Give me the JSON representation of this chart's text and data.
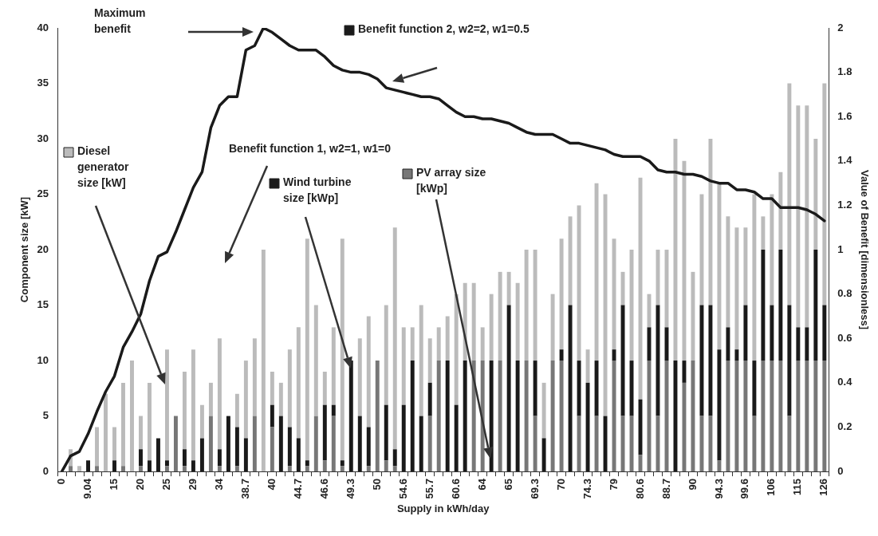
{
  "chart_data": {
    "type": "bar",
    "stacked": true,
    "marker": "none",
    "xlabel": "Supply in kWh/day",
    "ylabel": "Component size [kW]",
    "y2label": "Value of Benefit [dimensionless]",
    "categories": [
      "0",
      null,
      null,
      "9.04",
      null,
      null,
      "15",
      null,
      null,
      "20",
      null,
      null,
      "25",
      null,
      null,
      "29",
      null,
      null,
      "34",
      null,
      null,
      "38.7",
      null,
      null,
      "40",
      null,
      null,
      "44.7",
      null,
      null,
      "46.6",
      null,
      null,
      "49.3",
      null,
      null,
      "50",
      null,
      null,
      "54.6",
      null,
      null,
      "55.7",
      null,
      null,
      "60.6",
      null,
      null,
      "64",
      null,
      null,
      "65",
      null,
      null,
      "69.3",
      null,
      null,
      "70",
      null,
      null,
      "74.3",
      null,
      null,
      "79",
      null,
      null,
      "80.6",
      null,
      null,
      "88.7",
      null,
      null,
      "90",
      null,
      null,
      "94.3",
      null,
      null,
      "99.6",
      null,
      null,
      "106",
      null,
      null,
      "115",
      null,
      null,
      "126"
    ],
    "ylim": [
      0,
      40
    ],
    "yticks": [
      0,
      5,
      10,
      15,
      20,
      25,
      30,
      35,
      40
    ],
    "y2lim": [
      0,
      2
    ],
    "y2ticks": [
      0,
      0.2,
      0.4,
      0.6,
      0.8,
      1,
      1.2,
      1.4,
      1.6,
      1.8,
      2
    ],
    "series": [
      {
        "name": "PV array size [kWp]",
        "color": "#777777",
        "values": [
          0,
          0.5,
          0,
          0,
          0.5,
          0,
          0,
          0.5,
          0,
          0.5,
          0,
          0,
          0.5,
          5,
          0.5,
          0,
          0,
          5,
          0.5,
          0,
          0.5,
          0,
          5,
          0,
          4,
          0,
          0.5,
          0,
          0.5,
          5,
          1,
          5,
          0.5,
          0,
          0,
          0.5,
          10,
          1,
          0.5,
          0,
          0,
          0,
          5,
          10,
          0,
          0,
          0,
          10,
          10,
          0,
          10,
          0,
          0,
          10,
          5,
          0,
          10,
          10,
          0,
          5,
          0,
          5,
          0,
          10,
          5,
          5,
          1.5,
          10,
          5,
          10,
          0,
          8,
          10,
          5,
          5,
          1,
          10,
          10,
          10,
          5,
          10,
          10,
          10,
          5,
          10,
          10,
          10,
          10
        ]
      },
      {
        "name": "Wind turbine size [kWp]",
        "color": "#1a1a1a",
        "values": [
          0,
          0,
          0,
          1,
          0,
          0,
          1,
          0,
          0,
          1.5,
          1,
          3,
          0.5,
          0,
          1.5,
          1,
          3,
          0,
          1.5,
          5,
          3.5,
          3,
          0,
          0,
          2,
          5,
          3.5,
          3,
          0.5,
          0,
          5,
          1,
          0.5,
          10,
          5,
          3.5,
          0,
          5,
          1.5,
          6,
          10,
          5,
          3,
          0,
          10,
          6,
          10,
          0,
          0,
          10,
          0,
          15,
          10,
          0,
          5,
          3,
          0,
          1,
          15,
          5,
          8,
          5,
          5,
          1,
          10,
          5,
          5,
          3,
          10,
          3,
          10,
          2,
          0,
          10,
          10,
          10,
          3,
          1,
          5,
          5,
          10,
          5,
          10,
          10,
          3,
          3,
          10,
          5
        ]
      },
      {
        "name": "Diesel generator size [kW]",
        "color": "#bbbbbb",
        "values": [
          0,
          1.5,
          0.5,
          0,
          3.5,
          7,
          3,
          7.5,
          10,
          3,
          7,
          0,
          10,
          0,
          7,
          10,
          3,
          3,
          10,
          0,
          3,
          7,
          7,
          20,
          3,
          3,
          7,
          10,
          20,
          10,
          3,
          7,
          20,
          0,
          7,
          10,
          0,
          9,
          20,
          7,
          3,
          10,
          4,
          3,
          4,
          10,
          7,
          7,
          3,
          6,
          8,
          3,
          7,
          10,
          10,
          5,
          6,
          10,
          8,
          14,
          3,
          16,
          20,
          10,
          3,
          10,
          20,
          3,
          5,
          7,
          20,
          18,
          8,
          10,
          15,
          15,
          10,
          11,
          7,
          15,
          3,
          10,
          7,
          20,
          20,
          20,
          10,
          20
        ]
      },
      {
        "name": "Benefit function 2, w2=2, w1=0.5",
        "type": "line",
        "axis": "y2",
        "color": "#1a1a1a",
        "values": [
          0,
          0.07,
          0.09,
          0.17,
          0.27,
          0.36,
          0.43,
          0.56,
          0.63,
          0.71,
          0.86,
          0.97,
          0.99,
          1.08,
          1.18,
          1.28,
          1.35,
          1.55,
          1.65,
          1.69,
          1.69,
          1.9,
          1.92,
          2,
          1.98,
          1.95,
          1.92,
          1.9,
          1.9,
          1.9,
          1.87,
          1.83,
          1.81,
          1.8,
          1.8,
          1.79,
          1.77,
          1.73,
          1.72,
          1.71,
          1.7,
          1.69,
          1.69,
          1.68,
          1.65,
          1.62,
          1.6,
          1.6,
          1.59,
          1.59,
          1.58,
          1.57,
          1.55,
          1.53,
          1.52,
          1.52,
          1.52,
          1.5,
          1.48,
          1.48,
          1.47,
          1.46,
          1.45,
          1.43,
          1.42,
          1.42,
          1.42,
          1.4,
          1.36,
          1.35,
          1.35,
          1.34,
          1.34,
          1.33,
          1.31,
          1.3,
          1.3,
          1.27,
          1.27,
          1.26,
          1.23,
          1.23,
          1.19,
          1.19,
          1.19,
          1.18,
          1.16,
          1.13
        ]
      }
    ],
    "legend": "top left",
    "annotations": [
      "Maximum benefit",
      "Benefit function 1, w2=1, w1=0"
    ]
  }
}
